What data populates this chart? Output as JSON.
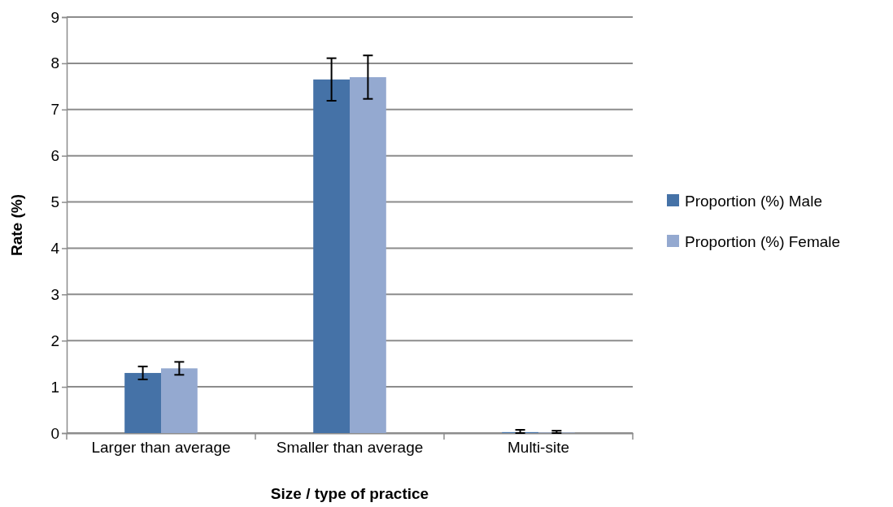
{
  "chart_data": {
    "type": "bar",
    "xlabel": "Size / type of practice",
    "ylabel": "Rate (%)",
    "categories": [
      "Larger than average",
      "Smaller than average",
      "Multi-site"
    ],
    "series": [
      {
        "name": "Proportion (%) Male",
        "color": "#4572a7",
        "values": [
          1.3,
          7.65,
          0.02
        ],
        "errors": [
          0.14,
          0.46,
          [
            0.02,
            0.05
          ]
        ]
      },
      {
        "name": "Proportion (%) Female",
        "color": "#94a9d0",
        "values": [
          1.4,
          7.7,
          0.01
        ],
        "errors": [
          0.14,
          0.47,
          [
            0.01,
            0.04
          ]
        ]
      }
    ],
    "ylim": [
      0,
      9
    ],
    "yticks": [
      0,
      1,
      2,
      3,
      4,
      5,
      6,
      7,
      8,
      9
    ],
    "grid": "y",
    "legend": "right"
  }
}
